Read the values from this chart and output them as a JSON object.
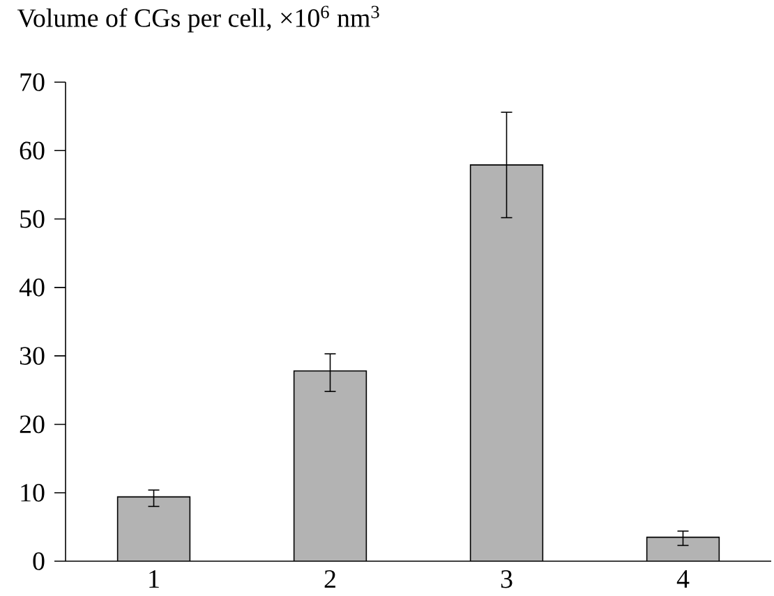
{
  "chart_data": {
    "type": "bar",
    "ylabel": "Volume of CGs per cell, ×10$^{6}$ nm$^{3}$",
    "categories": [
      "1",
      "2",
      "3",
      "4"
    ],
    "values": [
      9.4,
      27.8,
      57.9,
      3.5
    ],
    "errors": [
      [
        8.0,
        10.4
      ],
      [
        24.8,
        30.3
      ],
      [
        50.2,
        65.6
      ],
      [
        2.3,
        4.4
      ]
    ],
    "color": "#b3b3b3",
    "ylim": [
      0,
      70
    ],
    "yticks": [
      0,
      10,
      20,
      30,
      40,
      50,
      60,
      70
    ],
    "grid": false
  }
}
